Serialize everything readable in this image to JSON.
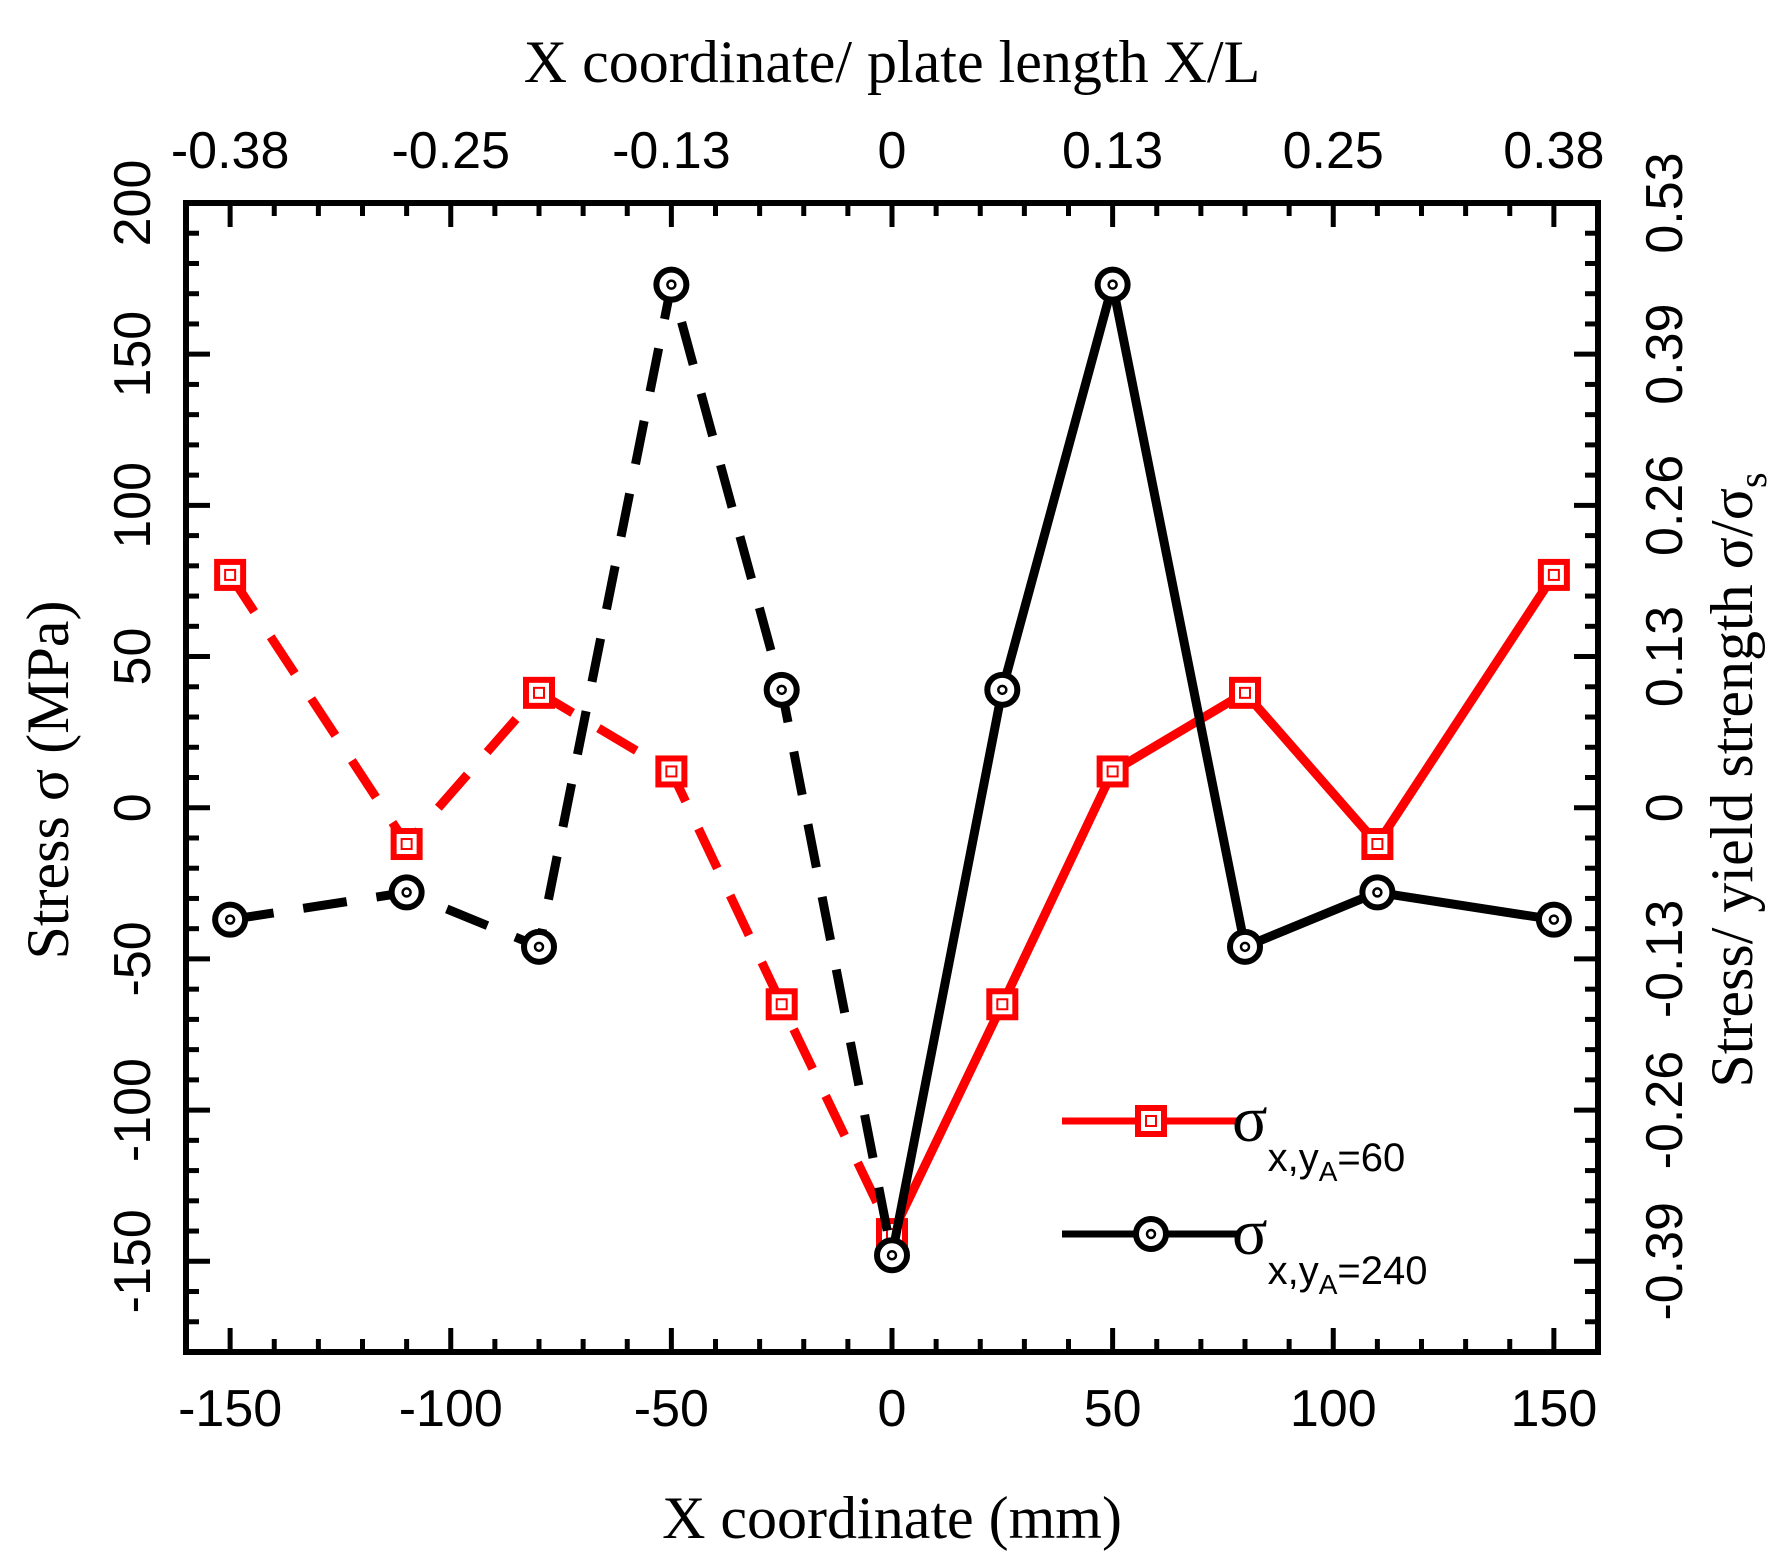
{
  "chart_data": {
    "type": "line",
    "bottom_axis": {
      "label": "X coordinate (mm)",
      "range": [
        -160,
        160
      ],
      "ticks": [
        -150,
        -100,
        -50,
        0,
        50,
        100,
        150
      ],
      "tick_labels": [
        "-150",
        "-100",
        "-50",
        "0",
        "50",
        "100",
        "150"
      ]
    },
    "top_axis": {
      "label": "X coordinate/ plate length X/L",
      "ticks": [
        -150,
        -100,
        -50,
        0,
        50,
        100,
        150
      ],
      "tick_labels": [
        "-0.38",
        "-0.25",
        "-0.13",
        "0",
        "0.13",
        "0.25",
        "0.38"
      ]
    },
    "left_axis": {
      "label": "Stress σ (MPa)",
      "range": [
        -180,
        200
      ],
      "ticks": [
        -150,
        -100,
        -50,
        0,
        50,
        100,
        150,
        200
      ],
      "tick_labels": [
        "-150",
        "-100",
        "-50",
        "0",
        "50",
        "100",
        "150",
        "200"
      ]
    },
    "right_axis": {
      "label_main": "Stress/ yield strength σ/σ",
      "label_sub": "s",
      "ticks": [
        -150,
        -100,
        -50,
        0,
        50,
        100,
        150,
        200
      ],
      "tick_labels": [
        "-0.39",
        "-0.26",
        "-0.13",
        "0",
        "0.13",
        "0.26",
        "0.39",
        "0.53"
      ]
    },
    "series": [
      {
        "name": "σx,yA=60",
        "label_main": "σ",
        "label_sub": "x,y",
        "label_subsub": "A",
        "label_tail": "=60",
        "color": "#ff0000",
        "marker": "square",
        "x": [
          -150,
          -110,
          -80,
          -50,
          -25,
          0,
          25,
          50,
          80,
          110,
          150
        ],
        "y": [
          77,
          -12,
          38,
          12,
          -65,
          -141,
          -65,
          12,
          38,
          -12,
          77
        ],
        "dashed_until_x": 0
      },
      {
        "name": "σx,yA=240",
        "label_main": "σ",
        "label_sub": "x,y",
        "label_subsub": "A",
        "label_tail": "=240",
        "color": "#000000",
        "marker": "circle",
        "x": [
          -150,
          -110,
          -80,
          -50,
          -25,
          0,
          25,
          50,
          80,
          110,
          150
        ],
        "y": [
          -37,
          -28,
          -46,
          173,
          39,
          -148,
          39,
          173,
          -46,
          -28,
          -37
        ],
        "dashed_until_x": 0
      }
    ],
    "legend_position": "bottom-right"
  }
}
